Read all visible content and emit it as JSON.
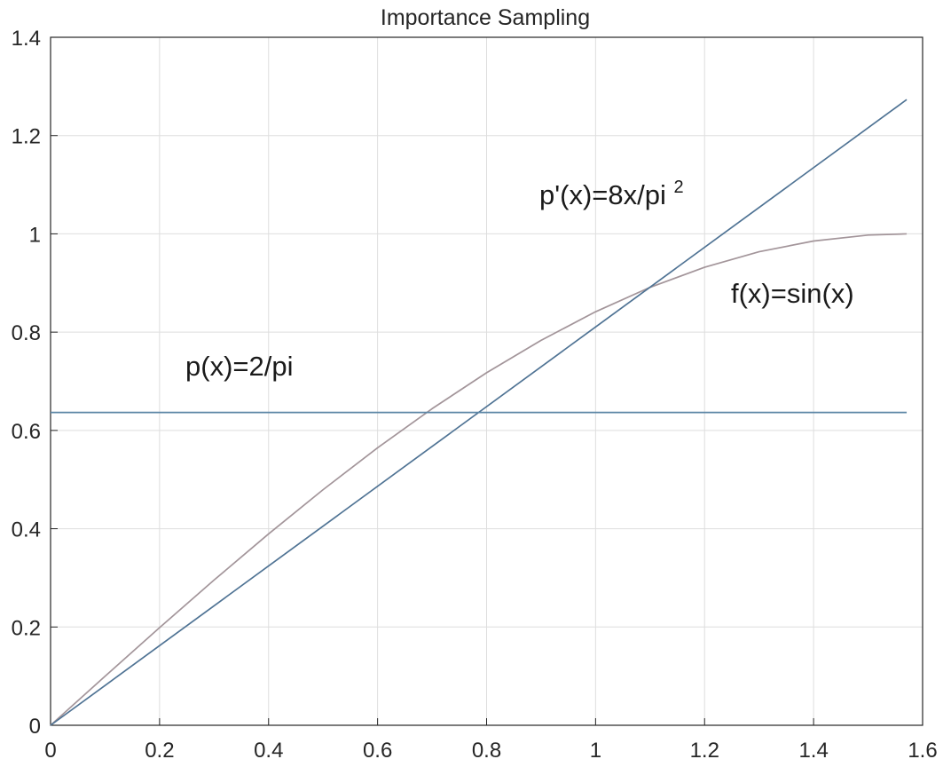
{
  "chart_data": {
    "type": "line",
    "title": "Importance Sampling",
    "xlabel": "",
    "ylabel": "",
    "xlim": [
      0,
      1.6
    ],
    "ylim": [
      0,
      1.4
    ],
    "grid": true,
    "xticks": [
      0,
      0.2,
      0.4,
      0.6,
      0.8,
      1,
      1.2,
      1.4,
      1.6
    ],
    "yticks": [
      0,
      0.2,
      0.4,
      0.6,
      0.8,
      1,
      1.2,
      1.4
    ],
    "x_tick_labels": [
      "0",
      "0.2",
      "0.4",
      "0.6",
      "0.8",
      "1",
      "1.2",
      "1.4",
      "1.6"
    ],
    "y_tick_labels": [
      "0",
      "0.2",
      "0.4",
      "0.6",
      "0.8",
      "1",
      "1.2",
      "1.4"
    ],
    "series": [
      {
        "color": "#a3959a",
        "x": [
          0,
          0.1,
          0.2,
          0.3,
          0.4,
          0.5,
          0.6,
          0.7,
          0.8,
          0.9,
          1.0,
          1.1,
          1.2,
          1.3,
          1.4,
          1.5,
          1.5708
        ],
        "values": [
          0,
          0.0998,
          0.1987,
          0.2955,
          0.3894,
          0.4794,
          0.5646,
          0.6442,
          0.7174,
          0.7833,
          0.8415,
          0.8912,
          0.932,
          0.9636,
          0.9854,
          0.9975,
          1.0
        ]
      },
      {
        "color": "#4f7394",
        "x": [
          0,
          1.5708
        ],
        "values": [
          0,
          1.2732
        ]
      },
      {
        "color": "#5b86a6",
        "x": [
          0,
          1.5708
        ],
        "values": [
          0.6366,
          0.6366
        ]
      }
    ],
    "annotations": {
      "p_label": "p(x)=2/pi",
      "pprime_main": "p'(x)=8x/pi",
      "pprime_sup": "2",
      "f_label": "f(x)=sin(x)"
    }
  }
}
